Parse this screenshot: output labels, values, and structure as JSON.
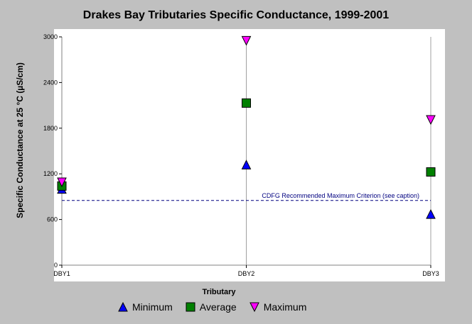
{
  "chart_data": {
    "type": "scatter",
    "title": "Drakes Bay Tributaries Specific Conductance, 1999-2001",
    "xlabel": "Tributary",
    "ylabel": "Specific Conductance at 25 °C (µS/cm)",
    "categories": [
      "DBY1",
      "DBY2",
      "DBY3"
    ],
    "ylim": [
      0,
      3000
    ],
    "yticks": [
      0,
      600,
      1200,
      1800,
      2400,
      3000
    ],
    "grid": "vertical-at-categories",
    "legend_position": "bottom",
    "series": [
      {
        "name": "Minimum",
        "marker": "triangle-up",
        "color": "#0000ff",
        "values": [
          1000,
          1320,
          670
        ]
      },
      {
        "name": "Average",
        "marker": "square",
        "color": "#008000",
        "values": [
          1040,
          2130,
          1225
        ]
      },
      {
        "name": "Maximum",
        "marker": "triangle-down",
        "color": "#ff00ff",
        "values": [
          1090,
          2950,
          1910
        ]
      }
    ],
    "reference_line": {
      "label": "CDFG Recommended Maximum Criterion (see caption)",
      "value": 850,
      "color": "#000080",
      "style": "dashed"
    }
  },
  "colors": {
    "background": "#c0c0c0",
    "plot_background": "#ffffff",
    "minimum": "#0000ff",
    "average": "#008000",
    "maximum": "#ff00ff",
    "criterion": "#000080"
  }
}
